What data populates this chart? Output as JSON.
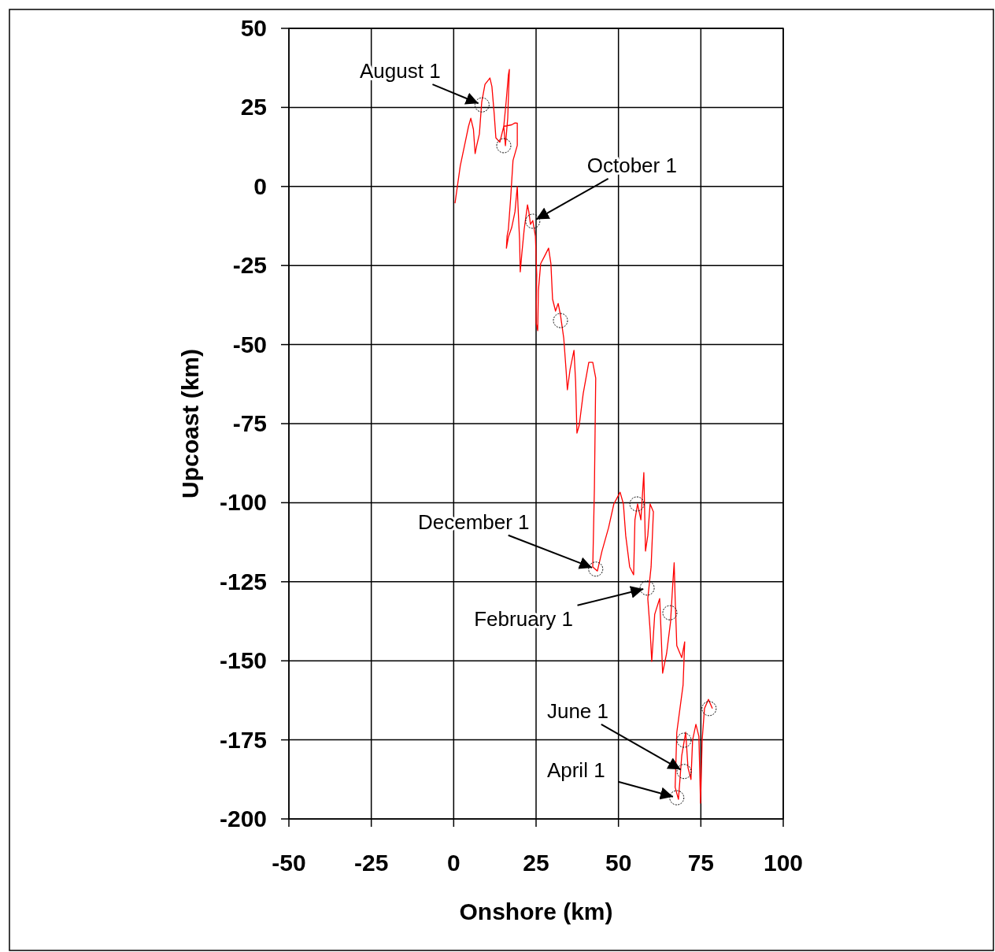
{
  "chart_data": {
    "type": "line",
    "xlabel": "Onshore (km)",
    "ylabel": "Upcoast (km)",
    "xlim": [
      -50,
      100
    ],
    "xticks": [
      -50,
      -25,
      0,
      25,
      50,
      75,
      100
    ],
    "ylim": [
      -200,
      50
    ],
    "yticks": [
      -200,
      -175,
      -150,
      -125,
      -100,
      -75,
      -50,
      -25,
      0,
      25,
      50
    ],
    "grid": true,
    "series": [
      {
        "color": "#ff0000",
        "marker": "none",
        "x": [
          0.4,
          2,
          3.5,
          4.5,
          5.2,
          6,
          6.5,
          7,
          7.8,
          8.5,
          9.5,
          11,
          11.6,
          12.3,
          12.8,
          14,
          15.2,
          15.9,
          16.6,
          16.9,
          16.4,
          15.7,
          15.2,
          17.6,
          18.6,
          19.3,
          19.3,
          18,
          17.3,
          16.6,
          16.2,
          16,
          16.6,
          17.6,
          18.6,
          19.3,
          19.5,
          20,
          20.2,
          20.7,
          21.4,
          22.4,
          22.8,
          23.3,
          24,
          24.8,
          25.2,
          25,
          25.5,
          25.7,
          26.4,
          27.6,
          28.8,
          29.5,
          30,
          30.9,
          31.7,
          32.4,
          33.4,
          34.1,
          34.5,
          35.3,
          36.5,
          37,
          37.4,
          38.1,
          39.3,
          41,
          42.2,
          43.1,
          42.7,
          42.2,
          43.6,
          45,
          47,
          48.6,
          50.5,
          51.5,
          52.2,
          53.4,
          54.6,
          55,
          55.8,
          56.8,
          57.7,
          58.2,
          58.9,
          59.6,
          60.6,
          59.9,
          58.9,
          59.6,
          60.1,
          61,
          62.5,
          62.9,
          63.4,
          64.6,
          65.8,
          66.5,
          66.9,
          67.2,
          67.7,
          69.2,
          70.1,
          69.6,
          67.7,
          67.2,
          68.2,
          69.2,
          70.4,
          71.1,
          72,
          72.5,
          73.5,
          74.4,
          74.9,
          75.4,
          76.1,
          77.3,
          78.5
        ],
        "values": [
          -5.3,
          6.5,
          14,
          19,
          21.6,
          18,
          10.4,
          13,
          16.6,
          26.6,
          32.3,
          34.3,
          31.6,
          22.9,
          15.4,
          14,
          19,
          26.6,
          35.3,
          37,
          21.6,
          12.9,
          19,
          19.5,
          20.1,
          20,
          13,
          8.2,
          -3.5,
          -13.5,
          -15.7,
          -19.5,
          -16,
          -13,
          -8,
          0,
          -5.8,
          -17,
          -27,
          -21,
          -13.5,
          -5.8,
          -8,
          -12,
          -10.8,
          -15.7,
          -28,
          -43,
          -45.6,
          -33,
          -24.4,
          -22,
          -19.5,
          -24.4,
          -35.6,
          -39.4,
          -37,
          -40.6,
          -48,
          -58,
          -64.3,
          -58,
          -51.8,
          -61.8,
          -78,
          -75.5,
          -65.5,
          -55.6,
          -55.6,
          -60.6,
          -95.4,
          -120.3,
          -121.6,
          -115.3,
          -107.9,
          -100.4,
          -96.7,
          -100.4,
          -110.4,
          -120.3,
          -122.8,
          -105.4,
          -100.4,
          -105.4,
          -90.5,
          -115.3,
          -110.4,
          -100.4,
          -102.9,
          -120.3,
          -130.3,
          -140.2,
          -150.2,
          -135.3,
          -130.3,
          -140.2,
          -153.9,
          -147.7,
          -137.7,
          -125.3,
          -119,
          -130.3,
          -145.2,
          -149,
          -144,
          -157.7,
          -172.6,
          -190,
          -193.8,
          -180,
          -172.6,
          -183.8,
          -187.5,
          -175,
          -170.1,
          -173.9,
          -195,
          -175,
          -165.1,
          -162.2,
          -165.1
        ]
      },
      {
        "type": "scatter",
        "color": "#000000",
        "marker": "circle",
        "x": [
          8.6,
          15.2,
          24,
          32.4,
          43.1,
          55.6,
          58.7,
          65.6,
          77.5,
          69.9,
          69.9,
          67.7
        ],
        "values": [
          25.8,
          12.9,
          -11,
          -42.4,
          -121,
          -100.4,
          -127,
          -134.8,
          -165.1,
          -175.1,
          -185,
          -193.3
        ]
      }
    ],
    "annotations": [
      {
        "text": "August 1",
        "x": 8.6,
        "y": 25.8
      },
      {
        "text": "October 1",
        "x": 24,
        "y": -11
      },
      {
        "text": "December 1",
        "x": 43.1,
        "y": -121
      },
      {
        "text": "February 1",
        "x": 58.7,
        "y": -127
      },
      {
        "text": "June 1",
        "x": 69.9,
        "y": -185
      },
      {
        "text": "April 1",
        "x": 67.7,
        "y": -193.3
      }
    ]
  }
}
